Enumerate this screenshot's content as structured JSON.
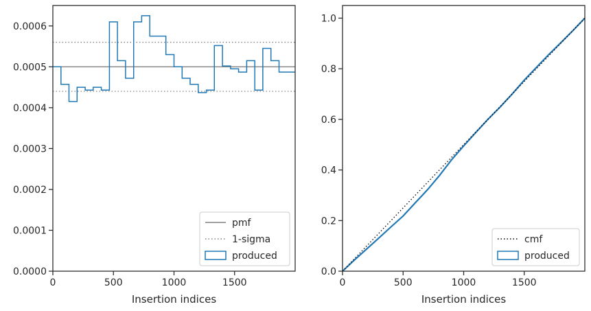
{
  "chart_data": [
    {
      "type": "line",
      "xlabel": "Insertion indices",
      "ylabel": "",
      "xlim": [
        0,
        2000
      ],
      "ylim": [
        0,
        0.00065
      ],
      "xticks": [
        0,
        500,
        1000,
        1500
      ],
      "xtick_labels": [
        "0",
        "500",
        "1000",
        "1500"
      ],
      "yticks": [
        0,
        0.0001,
        0.0002,
        0.0003,
        0.0004,
        0.0005,
        0.0006
      ],
      "ytick_labels": [
        "0.0000",
        "0.0001",
        "0.0002",
        "0.0003",
        "0.0004",
        "0.0005",
        "0.0006"
      ],
      "grid": false,
      "legend_position": "lower-right",
      "pmf": 0.0005,
      "sigma_band": [
        0.00044,
        0.00056
      ],
      "series": [
        {
          "name": "pmf",
          "style": "solid",
          "color": "#808080"
        },
        {
          "name": "1-sigma",
          "style": "dotted",
          "color": "#808080"
        },
        {
          "name": "produced",
          "style": "step-histogram",
          "color": "#1f77b4",
          "bin_edges": [
            0,
            67,
            133,
            200,
            267,
            333,
            400,
            467,
            533,
            600,
            667,
            733,
            800,
            867,
            933,
            1000,
            1067,
            1133,
            1200,
            1267,
            1333,
            1400,
            1467,
            1533,
            1600,
            1667,
            1733,
            1800,
            1867,
            1933,
            2000
          ],
          "values": [
            0.0005,
            0.000457,
            0.000415,
            0.00045,
            0.000443,
            0.00045,
            0.000443,
            0.00061,
            0.000515,
            0.000472,
            0.00061,
            0.000625,
            0.000575,
            0.000575,
            0.00053,
            0.0005,
            0.000472,
            0.000457,
            0.000437,
            0.000443,
            0.000552,
            0.000502,
            0.000495,
            0.000487,
            0.000515,
            0.000443,
            0.000545,
            0.000515,
            0.000487,
            0.000487
          ]
        }
      ]
    },
    {
      "type": "line",
      "xlabel": "Insertion indices",
      "ylabel": "",
      "xlim": [
        0,
        2000
      ],
      "ylim": [
        0,
        1.05
      ],
      "xticks": [
        0,
        500,
        1000,
        1500
      ],
      "xtick_labels": [
        "0",
        "500",
        "1000",
        "1500"
      ],
      "yticks": [
        0,
        0.2,
        0.4,
        0.6,
        0.8,
        1.0
      ],
      "ytick_labels": [
        "0.0",
        "0.2",
        "0.4",
        "0.6",
        "0.8",
        "1.0"
      ],
      "grid": false,
      "legend_position": "lower-right",
      "series": [
        {
          "name": "cmf",
          "style": "dotted",
          "color": "#000000",
          "x": [
            0,
            2000
          ],
          "y": [
            0,
            1.0
          ]
        },
        {
          "name": "produced",
          "style": "step",
          "color": "#1f77b4",
          "x": [
            0,
            100,
            200,
            300,
            400,
            500,
            600,
            700,
            800,
            900,
            1000,
            1100,
            1200,
            1300,
            1400,
            1500,
            1600,
            1700,
            1800,
            1900,
            2000
          ],
          "y": [
            0,
            0.045,
            0.088,
            0.131,
            0.175,
            0.218,
            0.27,
            0.321,
            0.378,
            0.44,
            0.495,
            0.548,
            0.6,
            0.648,
            0.7,
            0.755,
            0.805,
            0.855,
            0.902,
            0.95,
            1.0
          ]
        }
      ]
    }
  ]
}
